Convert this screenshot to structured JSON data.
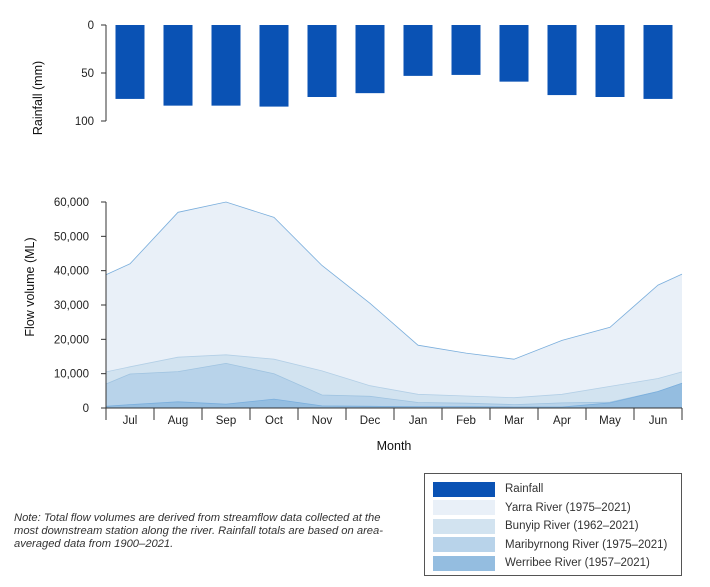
{
  "chart_data": [
    {
      "type": "bar",
      "orientation": "inverted",
      "name": "Rainfall",
      "categories": [
        "Jul",
        "Aug",
        "Sep",
        "Oct",
        "Nov",
        "Dec",
        "Jan",
        "Feb",
        "Mar",
        "Apr",
        "May",
        "Jun"
      ],
      "values": [
        77,
        84,
        84,
        85,
        75,
        71,
        53,
        52,
        59,
        73,
        75,
        77
      ],
      "ylabel": "Rainfall (mm)",
      "ylim": [
        0,
        100
      ],
      "yticks": [
        "0",
        "50",
        "100"
      ],
      "color": "#0a52b4"
    },
    {
      "type": "area",
      "categories": [
        "Jul",
        "Aug",
        "Sep",
        "Oct",
        "Nov",
        "Dec",
        "Jan",
        "Feb",
        "Mar",
        "Apr",
        "May",
        "Jun"
      ],
      "xlabel": "Month",
      "ylabel": "Flow volume (ML)",
      "ylim": [
        0,
        60000
      ],
      "yticks": [
        "0",
        "10,000",
        "20,000",
        "30,000",
        "40,000",
        "50,000",
        "60,000"
      ],
      "series": [
        {
          "name": "Yarra River (1975–2021)",
          "color": "#e9f0f8",
          "line": "#7aaedc",
          "x": [
            0,
            0.5,
            1.5,
            2.5,
            3.5,
            4.5,
            5.5,
            6.5,
            7.5,
            8.5,
            9.5,
            10.5,
            11.5,
            12
          ],
          "values": [
            38800,
            42000,
            57000,
            60000,
            55500,
            41500,
            30500,
            18300,
            16000,
            14200,
            19700,
            23500,
            35800,
            39000
          ]
        },
        {
          "name": "Bunyip River (1962–2021)",
          "color": "#d2e3f0",
          "line": "#b3cfe6",
          "x": [
            0,
            0.5,
            1.5,
            2.5,
            3.5,
            4.5,
            5.5,
            6.5,
            7.5,
            8.5,
            9.5,
            10.5,
            11.5,
            12
          ],
          "values": [
            10500,
            12000,
            14800,
            15500,
            14200,
            10800,
            6500,
            4000,
            3500,
            3000,
            4000,
            6300,
            8600,
            10500
          ]
        },
        {
          "name": "Maribyrnong River (1975–2021)",
          "color": "#b8d3ea",
          "line": "#9fc3e0",
          "x": [
            0,
            0.5,
            1.5,
            2.5,
            3.5,
            4.5,
            5.5,
            6.5,
            7.5,
            8.5,
            9.5,
            10.5,
            11.5,
            12
          ],
          "values": [
            7000,
            9900,
            10600,
            13000,
            10000,
            3800,
            3400,
            1600,
            1400,
            1000,
            1500,
            1700,
            4800,
            7200
          ]
        },
        {
          "name": "Werribee River (1957–2021)",
          "color": "#94bde0",
          "line": "#7aaedc",
          "x": [
            0,
            0.5,
            1.5,
            2.5,
            3.5,
            4.5,
            5.5,
            6.5,
            7.5,
            8.5,
            9.5,
            10.5,
            11.5,
            12
          ],
          "values": [
            500,
            1000,
            1800,
            1100,
            2600,
            600,
            500,
            400,
            400,
            300,
            300,
            1500,
            4800,
            7200
          ]
        }
      ]
    }
  ],
  "legend": [
    {
      "label": "Rainfall",
      "color": "#0a52b4"
    },
    {
      "label": "Yarra River (1975–2021)",
      "color": "#e9f0f8"
    },
    {
      "label": "Bunyip River (1962–2021)",
      "color": "#d2e3f0"
    },
    {
      "label": "Maribyrnong River (1975–2021)",
      "color": "#b8d3ea"
    },
    {
      "label": "Werribee River (1957–2021)",
      "color": "#94bde0"
    }
  ],
  "note": "Note: Total flow volumes are derived from streamflow data collected at the most downstream station along the river. Rainfall totals are based on area-averaged data from 1900–2021."
}
